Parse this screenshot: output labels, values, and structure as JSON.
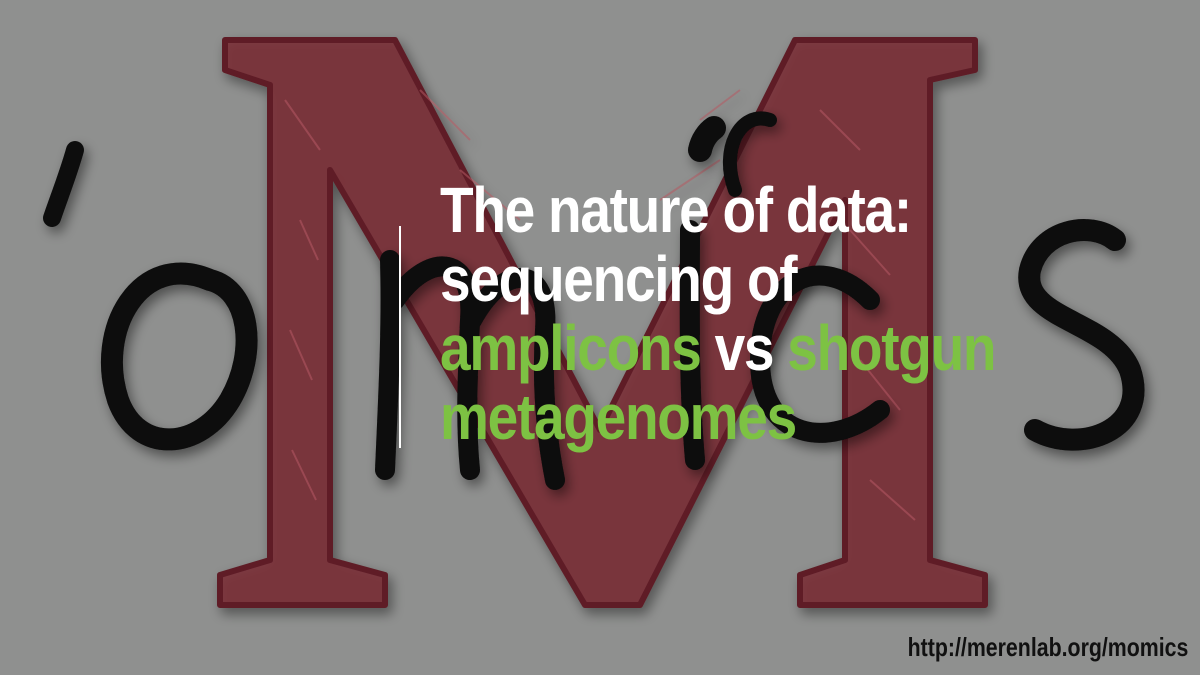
{
  "slide": {
    "title": {
      "line1": "The nature of data:",
      "line2": "sequencing of",
      "line3": {
        "part1": "amplicons",
        "part2": " vs ",
        "part3": "shotgun"
      },
      "line4": "metagenomes"
    },
    "url": "http://merenlab.org/momics"
  },
  "logo": {
    "lettering": "'omics M"
  },
  "colors": {
    "background": "#8f908f",
    "title_text": "#ffffff",
    "accent_green": "#7dc243",
    "logo_maroon": "#7a2a33",
    "logo_ink": "#0a0a0a",
    "url_text": "#111111"
  }
}
